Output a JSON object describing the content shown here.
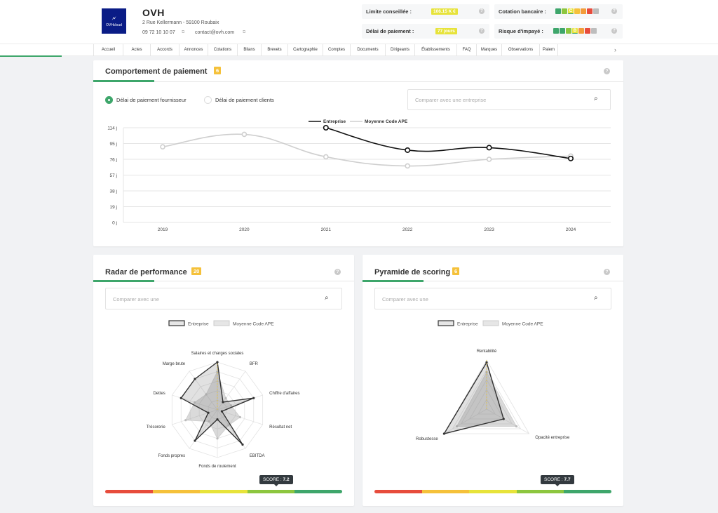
{
  "company": {
    "logo_text": "OVHcloud",
    "name": "OVH",
    "address": "2 Rue Kellermann - 59100 Roubaix",
    "phone": "09 72 10 10 07",
    "email": "contact@ovh.com"
  },
  "kpis": {
    "limite": {
      "label": "Limite conseillée :",
      "value": "106.15 K €"
    },
    "delai": {
      "label": "Délai de paiement :",
      "value": "77 jours"
    },
    "cotation": {
      "label": "Cotation bancaire :",
      "marker": "C"
    },
    "risque": {
      "label": "Risque d'impayé :",
      "marker": "B"
    }
  },
  "colors": {
    "green": "#3ea66b",
    "scale": [
      "#3ea66b",
      "#8dc63f",
      "#e7e33a",
      "#f5c13a",
      "#f39c3a",
      "#e74c3c",
      "#bdbdbd"
    ]
  },
  "nav": {
    "tabs": [
      "Accueil",
      "Actes",
      "Accords",
      "Annonces",
      "Cotations",
      "Bilans",
      "Brevets",
      "Cartographie",
      "Comptes",
      "Documents",
      "Dirigeants",
      "Établissements",
      "FAQ",
      "Marques",
      "Observations",
      "Paiem"
    ]
  },
  "payment": {
    "title": "Comportement de paiement",
    "badge": "6",
    "radio_supplier": "Délai de paiement fournisseur",
    "radio_clients": "Délai de paiement clients",
    "search_placeholder": "Comparer avec une entreprise"
  },
  "radar": {
    "title": "Radar de performance",
    "badge": "20",
    "search_placeholder": "Comparer avec une",
    "legend_company": "Entreprise",
    "legend_avg": "Moyenne Code APE",
    "score_label": "SCORE : ",
    "score_value": "7.2"
  },
  "pyramid": {
    "title": "Pyramide de scoring",
    "badge": "6",
    "search_placeholder": "Comparer avec une",
    "legend_company": "Entreprise",
    "legend_avg": "Moyenne Code APE",
    "score_label": "SCORE : ",
    "score_value": "7.7"
  },
  "chart_data": [
    {
      "type": "line",
      "title": "Comportement de paiement",
      "x": [
        "2019",
        "2020",
        "2021",
        "2022",
        "2023",
        "2024"
      ],
      "yticks": [
        "0 j",
        "19 j",
        "38 j",
        "57 j",
        "76 j",
        "95 j",
        "114 j"
      ],
      "ylim": [
        0,
        114
      ],
      "series": [
        {
          "name": "Entreprise",
          "values": [
            null,
            null,
            114,
            87,
            90,
            77
          ]
        },
        {
          "name": "Moyenne Code APE",
          "values": [
            91,
            106,
            79,
            68,
            76,
            80
          ]
        }
      ]
    },
    {
      "type": "radar",
      "title": "Radar de performance",
      "axes": [
        "Salaires et charges sociales",
        "BFR",
        "Chiffre d'affaires",
        "Résultat net",
        "EBITDA",
        "Fonds de roulement",
        "Fonds propres",
        "Trésorerie",
        "Dettes",
        "Marge brute"
      ],
      "ylim": [
        0,
        10
      ],
      "series": [
        {
          "name": "Entreprise",
          "values": [
            10,
            2,
            8,
            1,
            9,
            2,
            8,
            2,
            8,
            8
          ]
        },
        {
          "name": "Moyenne Code APE",
          "values": [
            8,
            3,
            3,
            5,
            4,
            6,
            3,
            7,
            5,
            4
          ]
        }
      ]
    },
    {
      "type": "radar",
      "title": "Pyramide de scoring",
      "axes": [
        "Rentabilité",
        "Opacité entreprise",
        "Robustesse"
      ],
      "ylim": [
        0,
        10
      ],
      "series": [
        {
          "name": "Entreprise",
          "values": [
            9.5,
            4,
            10
          ]
        },
        {
          "name": "Moyenne Code APE",
          "values": [
            7.5,
            7,
            7
          ]
        }
      ]
    }
  ]
}
